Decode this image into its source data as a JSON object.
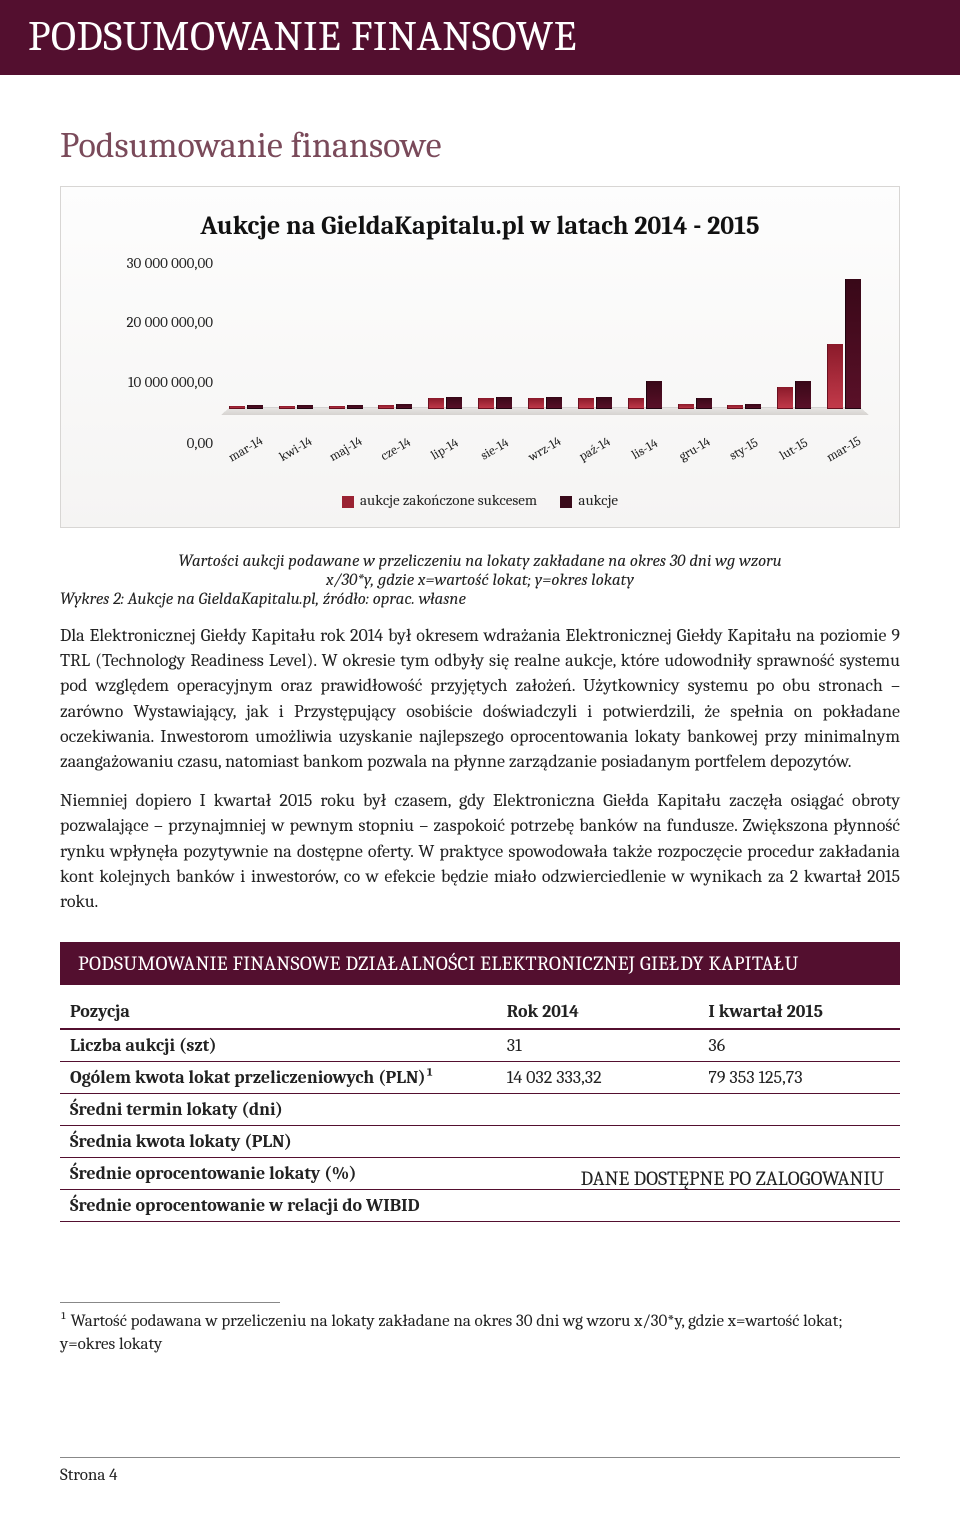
{
  "banner_title": "PODSUMOWANIE FINANSOWE",
  "subtitle": "Podsumowanie finansowe",
  "chart": {
    "type": "bar",
    "title": "Aukcje na GieldaKapitalu.pl w latach 2014 - 2015",
    "ylim": [
      0,
      30000000
    ],
    "yticks": [
      "30 000 000,00",
      "20 000 000,00",
      "10 000 000,00",
      "0,00"
    ],
    "categories": [
      "mar-14",
      "kwi-14",
      "maj-14",
      "cze-14",
      "lip-14",
      "sie-14",
      "wrz-14",
      "paź-14",
      "lis-14",
      "gru-14",
      "sty-15",
      "lut-15",
      "mar-15"
    ],
    "series": [
      {
        "name": "aukcje zakończone sukcesem",
        "color": "#9a2232",
        "values": [
          600000,
          600000,
          600000,
          900000,
          2600000,
          2600000,
          2600000,
          2600000,
          2600000,
          1200000,
          900000,
          5000000,
          15000000
        ]
      },
      {
        "name": "aukcje",
        "color": "#3a0a1a",
        "values": [
          900000,
          900000,
          900000,
          1200000,
          2800000,
          2800000,
          2800000,
          2800000,
          6500000,
          2600000,
          1200000,
          6500000,
          30000000
        ]
      }
    ],
    "background_color": "#f6f5f4",
    "platform_color": "#d6d3d0"
  },
  "note_line1": "Wartości aukcji podawane w przeliczeniu na lokaty zakładane na okres 30 dni wg wzoru",
  "note_line2": "x/30*y, gdzie x=wartość lokat; y=okres lokaty",
  "note_caption": "Wykres 2: Aukcje na GieldaKapitalu.pl, źródło: oprac. własne",
  "para1": "Dla Elektronicznej Giełdy Kapitału rok 2014 był okresem wdrażania Elektronicznej Giełdy Kapitału na poziomie 9 TRL (Technology Readiness Level). W okresie tym odbyły się realne aukcje, które udowodniły sprawność systemu pod względem operacyjnym oraz prawidłowość przyjętych założeń. Użytkownicy systemu po obu stronach – zarówno Wystawiający, jak i Przystępujący osobiście doświadczyli i potwierdzili, że spełnia on pokładane oczekiwania. Inwestorom umożliwia uzyskanie najlepszego oprocentowania lokaty bankowej przy minimalnym zaangażowaniu czasu, natomiast bankom pozwala na płynne zarządzanie posiadanym portfelem depozytów.",
  "para2": "Niemniej dopiero I kwartał 2015 roku był czasem, gdy Elektroniczna Giełda Kapitału zaczęła osiągać obroty pozwalające – przynajmniej w pewnym stopniu – zaspokoić potrzebę banków na fundusze. Zwiększona płynność rynku wpłynęła pozytywnie na dostępne oferty. W praktyce spowodowała także rozpoczęcie procedur zakładania kont kolejnych banków i inwestorów, co w efekcie będzie miało odzwierciedlenie w wynikach za 2 kwartał 2015 roku.",
  "section_title": "PODSUMOWANIE FINANSOWE DZIAŁALNOŚCI ELEKTRONICZNEJ GIEŁDY KAPITAŁU",
  "table": {
    "columns": [
      "Pozycja",
      "Rok 2014",
      "I kwartał 2015"
    ],
    "rows": [
      [
        "Liczba aukcji (szt)",
        "31",
        "36"
      ],
      [
        "Ogólem kwota lokat przeliczeniowych (PLN)¹",
        "14 032 333,32",
        "79 353 125,73"
      ],
      [
        "Średni termin lokaty (dni)",
        "",
        ""
      ],
      [
        "Średnia kwota lokaty (PLN)",
        "",
        ""
      ],
      [
        "Średnie oprocentowanie lokaty (%)",
        "",
        ""
      ],
      [
        "Średnie oprocentowanie w relacji do WIBID",
        "",
        ""
      ]
    ],
    "overlay_note": "DANE DOSTĘPNE PO ZALOGOWANIU"
  },
  "footnote": "¹ Wartość podawana w przeliczeniu na lokaty zakładane na okres 30 dni wg wzoru x/30*y, gdzie x=wartość lokat; y=okres lokaty",
  "page_footer": "Strona 4"
}
